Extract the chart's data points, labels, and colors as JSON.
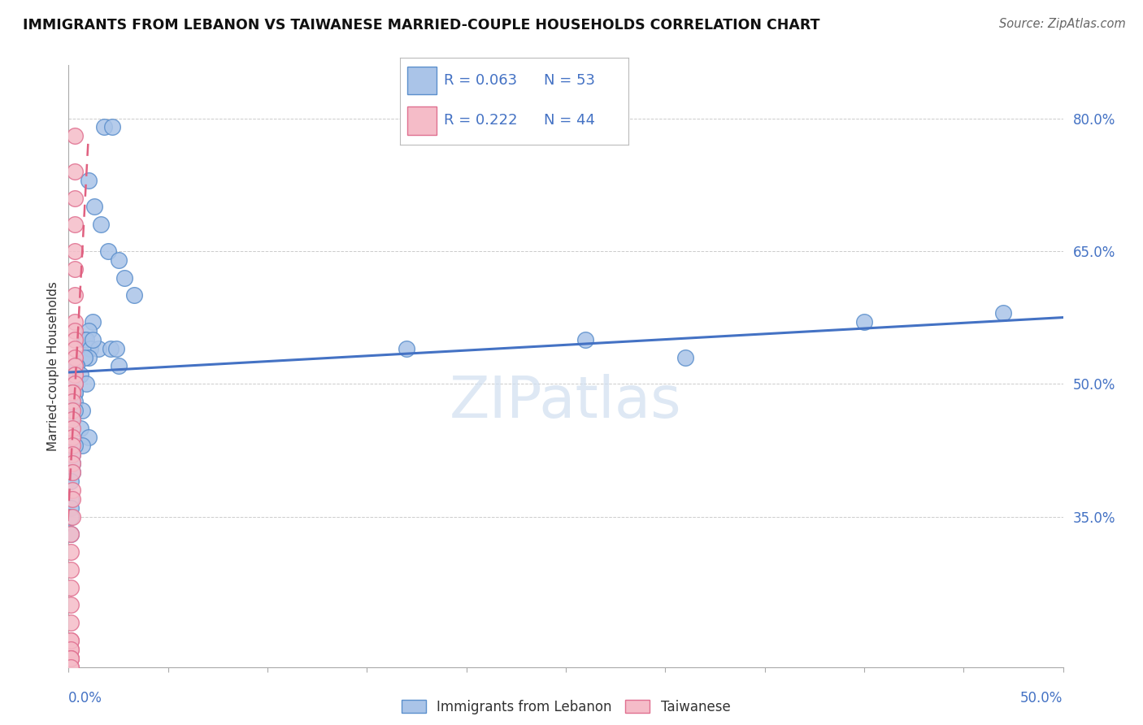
{
  "title": "IMMIGRANTS FROM LEBANON VS TAIWANESE MARRIED-COUPLE HOUSEHOLDS CORRELATION CHART",
  "source": "Source: ZipAtlas.com",
  "ylabel": "Married-couple Households",
  "ylim": [
    0.18,
    0.86
  ],
  "xlim": [
    0.0,
    0.5
  ],
  "ytick_vals": [
    0.35,
    0.5,
    0.65,
    0.8
  ],
  "ytick_labels": [
    "35.0%",
    "50.0%",
    "65.0%",
    "80.0%"
  ],
  "watermark": "ZIPatlas",
  "legend_blue_R": "R = 0.063",
  "legend_blue_N": "N = 53",
  "legend_pink_R": "R = 0.222",
  "legend_pink_N": "N = 44",
  "legend_label_blue": "Immigrants from Lebanon",
  "legend_label_pink": "Taiwanese",
  "blue_face": "#aac4e8",
  "blue_edge": "#5b8fcc",
  "pink_face": "#f5bcc8",
  "pink_edge": "#e07090",
  "blue_line": "#4472c4",
  "pink_line": "#e06080",
  "blue_scatter_x": [
    0.018,
    0.022,
    0.01,
    0.013,
    0.016,
    0.02,
    0.025,
    0.028,
    0.033,
    0.012,
    0.01,
    0.008,
    0.009,
    0.011,
    0.015,
    0.01,
    0.008,
    0.004,
    0.004,
    0.003,
    0.006,
    0.009,
    0.003,
    0.003,
    0.003,
    0.002,
    0.003,
    0.007,
    0.003,
    0.002,
    0.002,
    0.002,
    0.006,
    0.01,
    0.012,
    0.021,
    0.025,
    0.024,
    0.17,
    0.26,
    0.31,
    0.4,
    0.47,
    0.007,
    0.003,
    0.002,
    0.002,
    0.002,
    0.001,
    0.001,
    0.001,
    0.001,
    0.001
  ],
  "blue_scatter_y": [
    0.79,
    0.79,
    0.73,
    0.7,
    0.68,
    0.65,
    0.64,
    0.62,
    0.6,
    0.57,
    0.56,
    0.55,
    0.55,
    0.54,
    0.54,
    0.53,
    0.53,
    0.52,
    0.52,
    0.51,
    0.51,
    0.5,
    0.5,
    0.49,
    0.49,
    0.48,
    0.48,
    0.47,
    0.47,
    0.46,
    0.46,
    0.46,
    0.45,
    0.44,
    0.55,
    0.54,
    0.52,
    0.54,
    0.54,
    0.55,
    0.53,
    0.57,
    0.58,
    0.43,
    0.43,
    0.42,
    0.41,
    0.4,
    0.39,
    0.37,
    0.36,
    0.35,
    0.33
  ],
  "pink_scatter_x": [
    0.003,
    0.003,
    0.003,
    0.003,
    0.003,
    0.003,
    0.003,
    0.003,
    0.003,
    0.003,
    0.003,
    0.003,
    0.003,
    0.003,
    0.003,
    0.002,
    0.002,
    0.002,
    0.002,
    0.002,
    0.002,
    0.002,
    0.002,
    0.002,
    0.002,
    0.002,
    0.002,
    0.002,
    0.002,
    0.001,
    0.001,
    0.001,
    0.001,
    0.001,
    0.001,
    0.001,
    0.001,
    0.001,
    0.001,
    0.001,
    0.001,
    0.001,
    0.001,
    0.001
  ],
  "pink_scatter_y": [
    0.78,
    0.74,
    0.71,
    0.68,
    0.65,
    0.63,
    0.6,
    0.57,
    0.56,
    0.55,
    0.54,
    0.53,
    0.52,
    0.51,
    0.5,
    0.49,
    0.49,
    0.48,
    0.47,
    0.46,
    0.45,
    0.44,
    0.43,
    0.42,
    0.41,
    0.4,
    0.38,
    0.37,
    0.35,
    0.33,
    0.31,
    0.29,
    0.27,
    0.25,
    0.23,
    0.21,
    0.2,
    0.19,
    0.21,
    0.2,
    0.19,
    0.18,
    0.19,
    0.18
  ],
  "blue_line_x0": 0.0,
  "blue_line_x1": 0.5,
  "blue_line_y0": 0.513,
  "blue_line_y1": 0.575,
  "pink_line_x0": 0.0,
  "pink_line_x1": 0.005,
  "pink_line_y0": 0.36,
  "pink_line_y1": 0.57
}
